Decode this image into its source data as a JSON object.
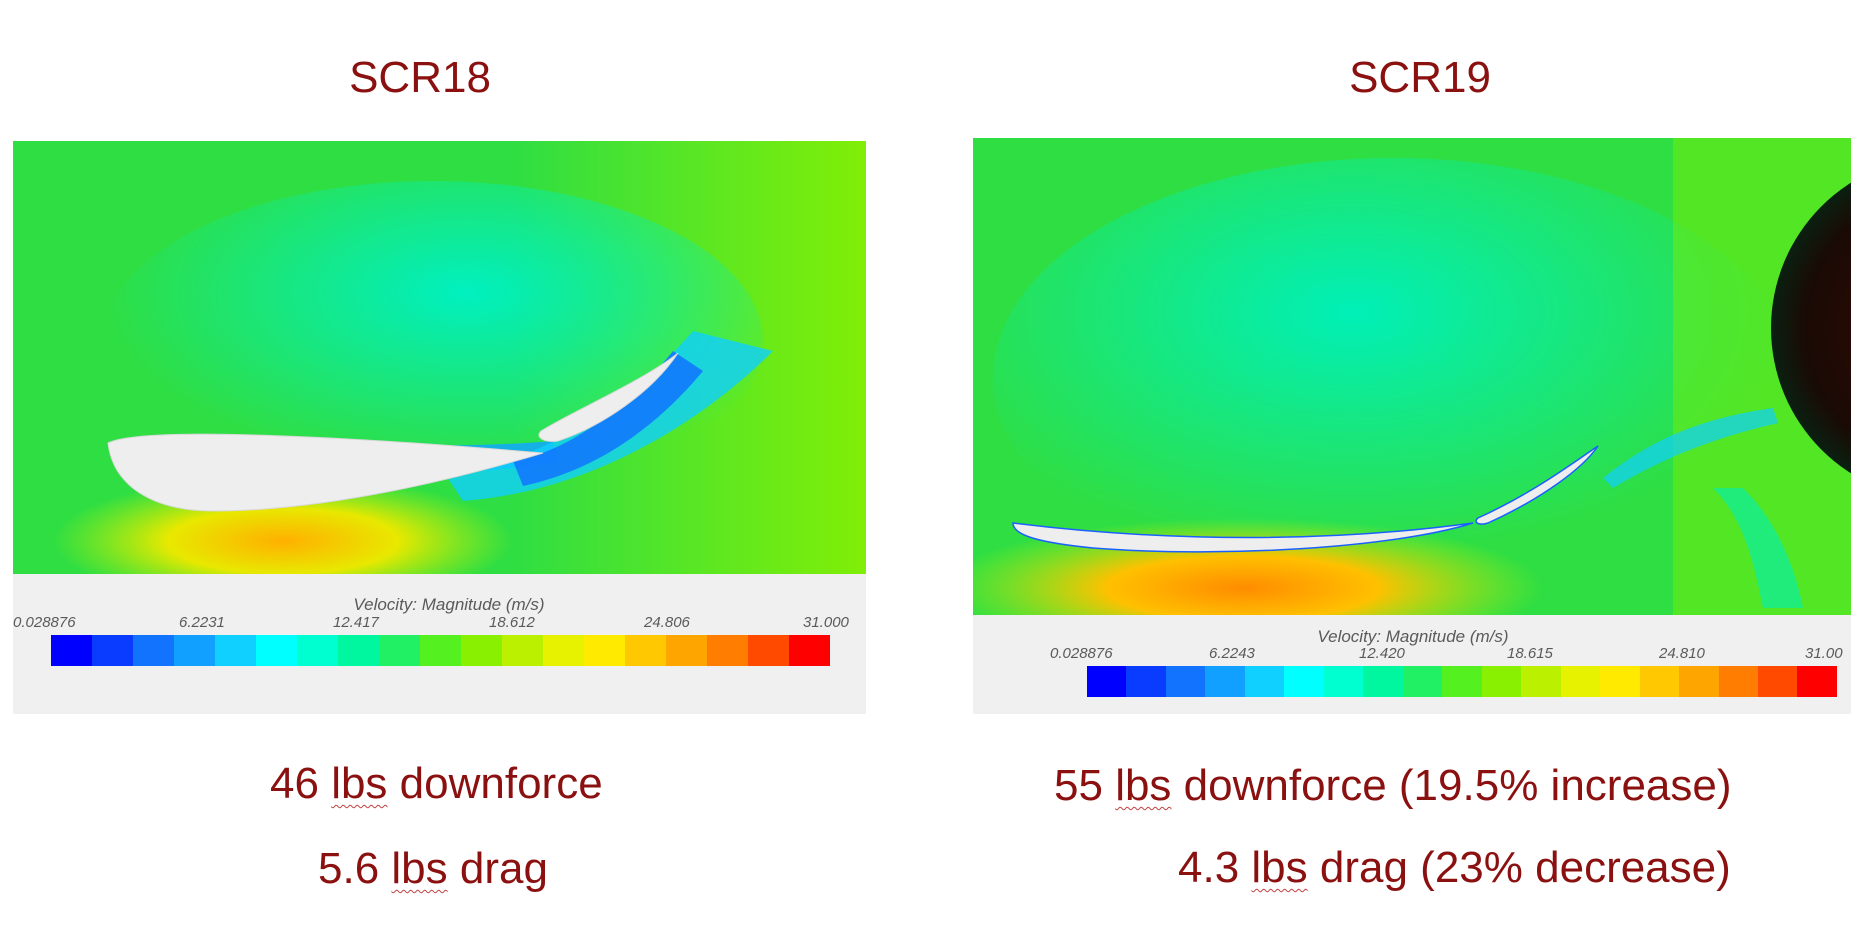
{
  "left": {
    "title": "SCR18",
    "legend_title": "Velocity: Magnitude (m/s)",
    "ticks": [
      "0.028876",
      "6.2231",
      "12.417",
      "18.612",
      "24.806",
      "31.000"
    ],
    "downforce_value": "46",
    "downforce_unit": "lbs",
    "downforce_text": "downforce",
    "drag_value": "5.6",
    "drag_unit": "lbs",
    "drag_text": "drag"
  },
  "right": {
    "title": "SCR19",
    "legend_title": "Velocity: Magnitude (m/s)",
    "ticks": [
      "0.028876",
      "6.2243",
      "12.420",
      "18.615",
      "24.810",
      "31.00"
    ],
    "downforce_value": "55",
    "downforce_unit": "lbs",
    "downforce_text": "downforce (19.5% increase)",
    "drag_value": "4.3",
    "drag_unit": "lbs",
    "drag_text": "drag (23% decrease)"
  },
  "colormap": [
    "#0000ff",
    "#0a3cff",
    "#1273ff",
    "#11a0ff",
    "#0fd0ff",
    "#00ffff",
    "#00ffd0",
    "#00f7a0",
    "#22f064",
    "#55f020",
    "#88f000",
    "#bbf000",
    "#e6f200",
    "#ffea00",
    "#ffc800",
    "#ffa500",
    "#ff7d00",
    "#ff4a00",
    "#ff0000"
  ],
  "colors": {
    "caption": "#8b1010",
    "field_base": "#33e03a"
  }
}
